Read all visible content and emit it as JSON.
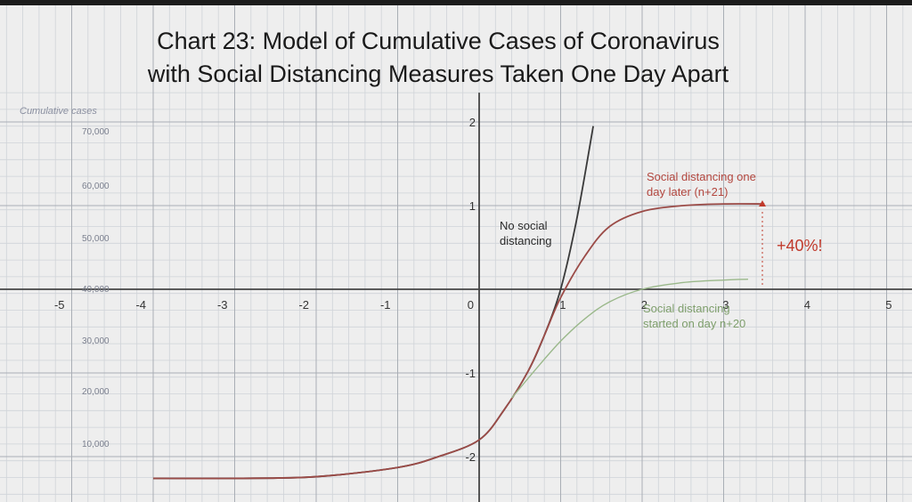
{
  "chart_data": {
    "type": "line",
    "title_lines": [
      "Chart 23: Model of Cumulative Cases of Coronavirus",
      "with Social Distancing Measures Taken One Day Apart"
    ],
    "ylabel": "Cumulative cases",
    "y_ticks": [
      "70,000",
      "60,000",
      "50,000",
      "40,000",
      "30,000",
      "20,000",
      "10,000"
    ],
    "y_tick_values": [
      70000,
      60000,
      50000,
      40000,
      30000,
      20000,
      10000
    ],
    "grid_x_ticks": [
      "-5",
      "-4",
      "-3",
      "-2",
      "-1",
      "0",
      "1",
      "2",
      "3",
      "4",
      "5"
    ],
    "grid_x_values": [
      -5,
      -4,
      -3,
      -2,
      -1,
      0,
      1,
      2,
      3,
      4,
      5
    ],
    "grid_y_ticks": [
      "2",
      "1",
      "-1",
      "-2"
    ],
    "grid_y_values": [
      2,
      1,
      -1,
      -2
    ],
    "x_range": [
      -5.8,
      5.4
    ],
    "y_range": [
      -2.25,
      2.35
    ],
    "grid": true,
    "series": [
      {
        "name": "No social distancing",
        "color": "#3a3a3a",
        "x": [
          -4.0,
          -3.0,
          -2.0,
          -1.0,
          -0.5,
          0.0,
          0.3,
          0.6,
          0.8,
          1.0,
          1.2,
          1.4
        ],
        "y": [
          -2.26,
          -2.26,
          -2.24,
          -2.13,
          -2.0,
          -1.8,
          -1.45,
          -0.98,
          -0.55,
          0.0,
          0.85,
          1.95
        ]
      },
      {
        "name": "Social distancing one day later (n+21)",
        "color": "#9b4b47",
        "x": [
          -4.0,
          -3.0,
          -2.0,
          -1.0,
          -0.5,
          0.0,
          0.3,
          0.6,
          0.8,
          1.0,
          1.3,
          1.6,
          2.0,
          2.5,
          3.0,
          3.5
        ],
        "y": [
          -2.26,
          -2.26,
          -2.24,
          -2.13,
          -2.0,
          -1.8,
          -1.45,
          -0.98,
          -0.55,
          -0.1,
          0.4,
          0.75,
          0.93,
          1.0,
          1.02,
          1.02
        ]
      },
      {
        "name": "Social distancing started on day n+20",
        "color": "#9ab88a",
        "x": [
          0.4,
          0.7,
          1.0,
          1.3,
          1.6,
          2.0,
          2.5,
          3.0,
          3.3
        ],
        "y": [
          -1.3,
          -0.95,
          -0.62,
          -0.35,
          -0.15,
          0.0,
          0.08,
          0.11,
          0.12
        ]
      }
    ],
    "annotations": [
      {
        "text_lines": [
          "No social",
          "distancing"
        ],
        "color": "#2a2a2a"
      },
      {
        "text_lines": [
          "Social distancing one",
          "day later (n+21)"
        ],
        "color": "#b3473f"
      },
      {
        "text_lines": [
          "Social distancing",
          "started on day n+20"
        ],
        "color": "#7e9e6c"
      },
      {
        "text_lines": [
          "+40%!"
        ],
        "color": "#c0392b"
      }
    ]
  }
}
